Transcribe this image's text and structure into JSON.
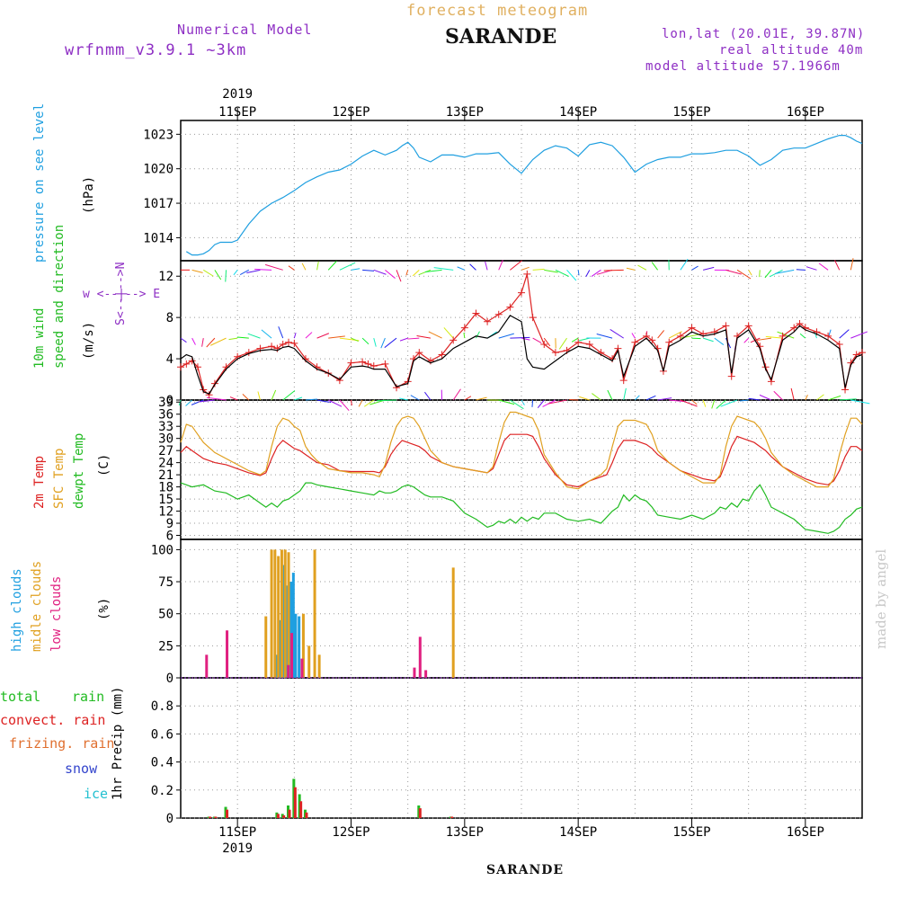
{
  "header": {
    "title": "forecast meteogram",
    "station": "SARANDE",
    "model_label": "Numerical Model",
    "model_version": "wrfnmm_v3.9.1   ~3km",
    "coords": "lon,lat (20.01E, 39.87N)",
    "real_altitude": "real altitude 40m",
    "model_altitude": "model altitude  57.1966m",
    "footer_station": "SARANDE",
    "credit": "made by angel"
  },
  "colors": {
    "pressure": "#1f9fe0",
    "wind_label": "#22bb22",
    "temp_2m": "#dd2222",
    "temp_sfc": "#e0a020",
    "dewpoint": "#22bb22",
    "purple": "#8e2fc4",
    "header_orange": "#e0b060",
    "high_clouds": "#1f9fe0",
    "middle_clouds": "#e0a020",
    "low_clouds": "#e02080",
    "total_rain": "#22bb22",
    "convect_rain": "#dd2222",
    "frizing_rain": "#e07030",
    "snow": "#3344cc",
    "ice": "#22c0d0"
  },
  "time_axis": {
    "year": "2019",
    "days": [
      "11SEP",
      "12SEP",
      "13SEP",
      "14SEP",
      "15SEP",
      "16SEP"
    ]
  },
  "chart_data": [
    {
      "type": "line",
      "panel": "pressure",
      "ylabel": "pressure on see level",
      "unit": "(hPa)",
      "yticks": [
        "1014",
        "1017",
        "1020",
        "1023"
      ],
      "ylim": [
        1012,
        1024.2
      ],
      "x_days": [
        10.55,
        10.6,
        10.65,
        10.7,
        10.75,
        10.8,
        10.85,
        10.9,
        10.95,
        11.0,
        11.1,
        11.2,
        11.3,
        11.4,
        11.5,
        11.6,
        11.7,
        11.8,
        11.9,
        12.0,
        12.1,
        12.2,
        12.3,
        12.4,
        12.45,
        12.5,
        12.55,
        12.6,
        12.7,
        12.8,
        12.9,
        13.0,
        13.1,
        13.2,
        13.3,
        13.4,
        13.5,
        13.6,
        13.7,
        13.8,
        13.9,
        14.0,
        14.1,
        14.2,
        14.3,
        14.4,
        14.5,
        14.6,
        14.7,
        14.8,
        14.9,
        15.0,
        15.1,
        15.2,
        15.3,
        15.4,
        15.5,
        15.6,
        15.7,
        15.8,
        15.9,
        16.0,
        16.1,
        16.2,
        16.3,
        16.35,
        16.4,
        16.45,
        16.5
      ],
      "values": [
        1012.8,
        1012.5,
        1012.5,
        1012.6,
        1012.9,
        1013.4,
        1013.6,
        1013.6,
        1013.6,
        1013.8,
        1015.2,
        1016.3,
        1017.0,
        1017.5,
        1018.1,
        1018.8,
        1019.3,
        1019.7,
        1019.9,
        1020.4,
        1021.1,
        1021.6,
        1021.2,
        1021.6,
        1022.0,
        1022.3,
        1021.8,
        1021.0,
        1020.6,
        1021.2,
        1021.2,
        1021.0,
        1021.3,
        1021.3,
        1021.4,
        1020.4,
        1019.6,
        1020.8,
        1021.6,
        1022.0,
        1021.8,
        1021.1,
        1022.1,
        1022.3,
        1022.0,
        1021.0,
        1019.7,
        1020.4,
        1020.8,
        1021.0,
        1021.0,
        1021.3,
        1021.3,
        1021.4,
        1021.6,
        1021.6,
        1021.1,
        1020.3,
        1020.8,
        1021.6,
        1021.8,
        1021.8,
        1022.2,
        1022.6,
        1022.9,
        1022.9,
        1022.7,
        1022.4,
        1022.2
      ]
    },
    {
      "type": "line",
      "panel": "wind",
      "ylabel_lines": [
        "10m wind",
        "speed and direction"
      ],
      "unit": "(m/s)",
      "compass": [
        "w <--|--> E",
        "S<--|-->N"
      ],
      "yticks": [
        "0",
        "4",
        "8",
        "12"
      ],
      "ylim": [
        0,
        13.5
      ],
      "x_days": [
        10.5,
        10.55,
        10.6,
        10.65,
        10.7,
        10.75,
        10.8,
        10.9,
        11.0,
        11.1,
        11.2,
        11.3,
        11.35,
        11.4,
        11.45,
        11.5,
        11.6,
        11.7,
        11.8,
        11.9,
        12.0,
        12.1,
        12.15,
        12.2,
        12.3,
        12.4,
        12.5,
        12.55,
        12.6,
        12.7,
        12.8,
        12.9,
        13.0,
        13.1,
        13.2,
        13.3,
        13.4,
        13.5,
        13.55,
        13.6,
        13.7,
        13.8,
        13.9,
        14.0,
        14.1,
        14.2,
        14.3,
        14.35,
        14.4,
        14.5,
        14.6,
        14.65,
        14.7,
        14.75,
        14.8,
        14.9,
        15.0,
        15.1,
        15.2,
        15.3,
        15.35,
        15.4,
        15.5,
        15.6,
        15.65,
        15.7,
        15.8,
        15.9,
        15.95,
        16.0,
        16.1,
        16.2,
        16.3,
        16.35,
        16.4,
        16.45,
        16.5
      ],
      "series": [
        {
          "name": "red",
          "marker": "+",
          "values": [
            3.2,
            3.5,
            3.8,
            3.2,
            1.0,
            0.5,
            1.6,
            3.2,
            4.2,
            4.6,
            5.0,
            5.2,
            5.0,
            5.4,
            5.6,
            5.5,
            4.0,
            3.2,
            2.6,
            1.9,
            3.6,
            3.7,
            3.5,
            3.3,
            3.5,
            1.2,
            1.8,
            4.0,
            4.6,
            3.8,
            4.4,
            5.8,
            7.0,
            8.4,
            7.6,
            8.3,
            9.0,
            10.4,
            12.2,
            8.0,
            5.4,
            4.6,
            4.8,
            5.6,
            5.4,
            4.6,
            4.0,
            5.0,
            1.9,
            5.6,
            6.2,
            5.8,
            5.0,
            2.8,
            5.6,
            6.2,
            7.0,
            6.4,
            6.6,
            7.2,
            2.3,
            6.2,
            7.2,
            5.2,
            3.2,
            1.8,
            6.2,
            7.0,
            7.4,
            7.0,
            6.6,
            6.2,
            5.4,
            1.0,
            3.6,
            4.4,
            4.6
          ]
        },
        {
          "name": "black",
          "marker": "",
          "values": [
            4.0,
            4.4,
            4.2,
            2.4,
            0.8,
            0.6,
            1.5,
            3.0,
            4.0,
            4.5,
            4.8,
            4.9,
            4.8,
            5.1,
            5.2,
            5.0,
            3.8,
            3.0,
            2.6,
            2.0,
            3.2,
            3.3,
            3.2,
            3.0,
            3.0,
            1.3,
            1.6,
            3.8,
            4.2,
            3.6,
            4.0,
            5.0,
            5.6,
            6.2,
            6.0,
            6.6,
            8.2,
            7.6,
            4.0,
            3.2,
            3.0,
            3.8,
            4.6,
            5.2,
            5.0,
            4.4,
            3.8,
            4.8,
            2.3,
            5.2,
            6.0,
            5.4,
            4.8,
            2.8,
            5.2,
            5.8,
            6.6,
            6.2,
            6.4,
            6.8,
            2.6,
            6.0,
            6.8,
            5.0,
            3.0,
            2.0,
            5.8,
            6.6,
            7.2,
            6.8,
            6.4,
            5.8,
            5.0,
            1.2,
            3.4,
            4.2,
            4.4
          ]
        }
      ],
      "wind_barb_rows": [
        12.6,
        6.0,
        0.0
      ]
    },
    {
      "type": "line",
      "panel": "temperature",
      "ylabel_lines": [
        "2m Temp",
        "SFC Temp",
        "dewpt Temp"
      ],
      "unit": "(C)",
      "yticks": [
        "6",
        "9",
        "12",
        "15",
        "18",
        "21",
        "24",
        "27",
        "30",
        "33",
        "36",
        "39"
      ],
      "ylim": [
        5,
        39.5
      ],
      "x_days": [
        10.5,
        10.55,
        10.6,
        10.7,
        10.8,
        10.9,
        11.0,
        11.1,
        11.2,
        11.25,
        11.3,
        11.35,
        11.4,
        11.45,
        11.5,
        11.55,
        11.6,
        11.65,
        11.7,
        11.8,
        11.9,
        12.0,
        12.1,
        12.2,
        12.25,
        12.3,
        12.35,
        12.4,
        12.45,
        12.5,
        12.55,
        12.6,
        12.65,
        12.7,
        12.8,
        12.9,
        13.0,
        13.1,
        13.2,
        13.25,
        13.3,
        13.35,
        13.4,
        13.45,
        13.5,
        13.55,
        13.6,
        13.65,
        13.7,
        13.8,
        13.9,
        14.0,
        14.1,
        14.2,
        14.25,
        14.3,
        14.35,
        14.4,
        14.45,
        14.5,
        14.55,
        14.6,
        14.65,
        14.7,
        14.8,
        14.9,
        15.0,
        15.1,
        15.2,
        15.25,
        15.3,
        15.35,
        15.4,
        15.45,
        15.5,
        15.55,
        15.6,
        15.65,
        15.7,
        15.8,
        15.9,
        16.0,
        16.1,
        16.2,
        16.25,
        16.3,
        16.35,
        16.4,
        16.45,
        16.5
      ],
      "series": [
        {
          "name": "2m Temp",
          "values": [
            26.5,
            28.0,
            27.0,
            25.0,
            24.0,
            23.5,
            22.5,
            21.5,
            20.8,
            21.5,
            25.0,
            28.0,
            29.5,
            28.5,
            27.5,
            27.0,
            26.0,
            25.0,
            24.0,
            23.5,
            22.0,
            21.8,
            21.8,
            21.8,
            21.5,
            23.0,
            26.0,
            28.0,
            29.5,
            29.0,
            28.5,
            28.0,
            27.0,
            25.5,
            24.0,
            23.0,
            22.5,
            22.0,
            21.5,
            22.5,
            26.0,
            29.5,
            31.0,
            31.0,
            31.0,
            31.0,
            30.5,
            28.0,
            25.0,
            21.0,
            18.5,
            18.0,
            19.5,
            20.5,
            21.0,
            24.0,
            27.5,
            29.5,
            29.5,
            29.5,
            29.0,
            28.5,
            27.5,
            26.0,
            24.0,
            22.0,
            21.0,
            20.0,
            19.5,
            20.5,
            24.0,
            28.0,
            30.5,
            30.0,
            29.5,
            29.0,
            28.0,
            27.0,
            25.5,
            23.0,
            21.5,
            20.0,
            19.0,
            18.5,
            19.5,
            22.0,
            25.5,
            28.0,
            28.0,
            27.0
          ]
        },
        {
          "name": "SFC Temp",
          "values": [
            29.0,
            33.5,
            33.0,
            29.0,
            26.5,
            25.0,
            23.5,
            22.0,
            21.0,
            22.0,
            28.0,
            33.0,
            35.0,
            34.5,
            33.0,
            32.0,
            28.0,
            26.0,
            24.5,
            22.5,
            22.0,
            21.5,
            21.5,
            21.0,
            20.5,
            23.5,
            29.0,
            33.0,
            35.0,
            35.5,
            35.0,
            33.0,
            30.0,
            27.0,
            24.0,
            23.0,
            22.5,
            22.0,
            21.5,
            23.0,
            29.0,
            34.0,
            36.5,
            36.5,
            36.0,
            35.5,
            35.0,
            32.0,
            26.0,
            21.5,
            18.0,
            17.5,
            19.5,
            21.0,
            22.5,
            28.0,
            33.0,
            34.5,
            34.5,
            34.5,
            34.0,
            33.5,
            31.0,
            27.0,
            24.0,
            22.0,
            20.5,
            19.0,
            19.0,
            21.0,
            28.0,
            33.0,
            35.5,
            35.0,
            34.5,
            34.0,
            32.5,
            30.0,
            26.5,
            23.0,
            21.0,
            19.5,
            18.0,
            18.0,
            20.0,
            26.0,
            31.0,
            35.0,
            35.0,
            33.5
          ]
        },
        {
          "name": "dewpt Temp",
          "values": [
            19.0,
            18.5,
            18.0,
            18.5,
            17.0,
            16.5,
            15.0,
            16.0,
            14.0,
            13.0,
            14.0,
            13.0,
            14.5,
            15.0,
            16.0,
            17.0,
            19.0,
            19.0,
            18.5,
            18.0,
            17.5,
            17.0,
            16.5,
            16.0,
            17.0,
            16.5,
            16.5,
            17.0,
            18.0,
            18.5,
            18.0,
            17.0,
            16.0,
            15.5,
            15.5,
            14.5,
            11.5,
            10.0,
            8.0,
            8.5,
            9.5,
            9.0,
            10.0,
            9.0,
            10.5,
            9.5,
            10.5,
            10.0,
            11.5,
            11.5,
            10.0,
            9.5,
            10.0,
            9.0,
            10.5,
            12.0,
            13.0,
            16.0,
            14.5,
            16.0,
            15.0,
            14.5,
            13.0,
            11.0,
            10.5,
            10.0,
            11.0,
            10.0,
            11.5,
            13.0,
            12.5,
            14.0,
            13.0,
            15.0,
            14.5,
            17.0,
            18.5,
            16.0,
            13.0,
            11.5,
            10.0,
            7.5,
            7.0,
            6.5,
            7.0,
            8.0,
            10.0,
            11.0,
            12.5,
            13.0
          ]
        }
      ]
    },
    {
      "type": "bar",
      "panel": "clouds",
      "ylabel_lines": [
        "high   clouds",
        "midle clouds",
        "low    clouds"
      ],
      "unit": "(%)",
      "yticks": [
        "0",
        "25",
        "50",
        "75",
        "100"
      ],
      "ylim": [
        0,
        108
      ],
      "series": [
        {
          "name": "high clouds",
          "x_days": [
            11.33,
            11.35,
            11.38,
            11.42,
            11.45,
            11.48,
            11.5,
            11.52,
            11.55
          ],
          "values": [
            0,
            18,
            45,
            88,
            72,
            75,
            82,
            50,
            48
          ]
        },
        {
          "name": "midle clouds",
          "x_days": [
            10.72,
            10.9,
            11.25,
            11.3,
            11.33,
            11.36,
            11.39,
            11.42,
            11.45,
            11.58,
            11.63,
            11.68,
            11.72,
            12.9
          ],
          "values": [
            0,
            0,
            48,
            100,
            100,
            95,
            100,
            100,
            98,
            50,
            25,
            100,
            18,
            86
          ]
        },
        {
          "name": "low clouds",
          "x_days": [
            10.72,
            10.9,
            11.44,
            11.47,
            11.56,
            12.55,
            12.6,
            12.65
          ],
          "values": [
            18,
            37,
            10,
            35,
            15,
            8,
            32,
            6
          ]
        }
      ]
    },
    {
      "type": "bar",
      "panel": "precip",
      "ylabel": "1hr Precip (mm)",
      "legend": [
        "total",
        "rain",
        "convect. rain",
        "frizing. rain",
        "snow",
        "ice"
      ],
      "yticks": [
        "0",
        "0.2",
        "0.4",
        "0.6",
        "0.8"
      ],
      "ylim": [
        0,
        1.0
      ],
      "series": [
        {
          "name": "total rain",
          "x_days": [
            10.75,
            10.8,
            10.9,
            11.35,
            11.4,
            11.45,
            11.5,
            11.55,
            11.6,
            12.6,
            12.88
          ],
          "values": [
            0.01,
            0.01,
            0.08,
            0.04,
            0.03,
            0.09,
            0.28,
            0.17,
            0.06,
            0.09,
            0.01
          ]
        },
        {
          "name": "convect. rain",
          "x_days": [
            10.75,
            10.8,
            10.9,
            11.35,
            11.4,
            11.45,
            11.5,
            11.55,
            11.6,
            12.6,
            12.88
          ],
          "values": [
            0.01,
            0.01,
            0.06,
            0.03,
            0.02,
            0.06,
            0.22,
            0.12,
            0.04,
            0.07,
            0.01
          ]
        }
      ]
    }
  ]
}
